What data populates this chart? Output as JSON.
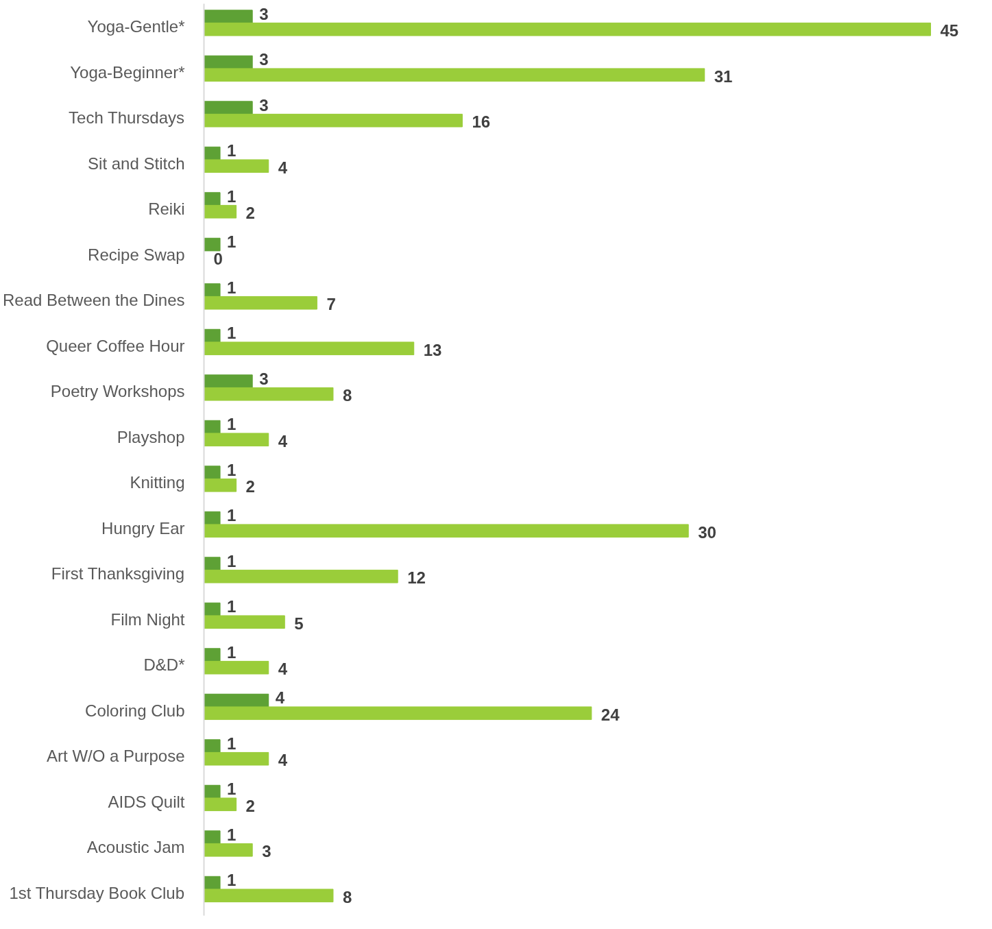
{
  "chart_data": {
    "type": "bar",
    "orientation": "horizontal",
    "data_labels": true,
    "grid": false,
    "categories": [
      "Yoga-Gentle*",
      "Yoga-Beginner*",
      "Tech Thursdays",
      "Sit and Stitch",
      "Reiki",
      "Recipe Swap",
      "Read Between the Dines",
      "Queer Coffee Hour",
      "Poetry Workshops",
      "Playshop",
      "Knitting",
      "Hungry Ear",
      "First Thanksgiving",
      "Film Night",
      "D&D*",
      "Coloring Club",
      "Art W/O a Purpose",
      "AIDS Quilt",
      "Acoustic Jam",
      "1st Thursday Book Club"
    ],
    "series": [
      {
        "color": "#5ea135",
        "values": [
          3,
          3,
          3,
          1,
          1,
          1,
          1,
          1,
          3,
          1,
          1,
          1,
          1,
          1,
          1,
          4,
          1,
          1,
          1,
          1
        ]
      },
      {
        "color": "#9acd3a",
        "values": [
          45,
          31,
          16,
          4,
          2,
          0,
          7,
          13,
          8,
          4,
          2,
          30,
          12,
          5,
          4,
          24,
          4,
          2,
          3,
          8
        ]
      }
    ]
  }
}
